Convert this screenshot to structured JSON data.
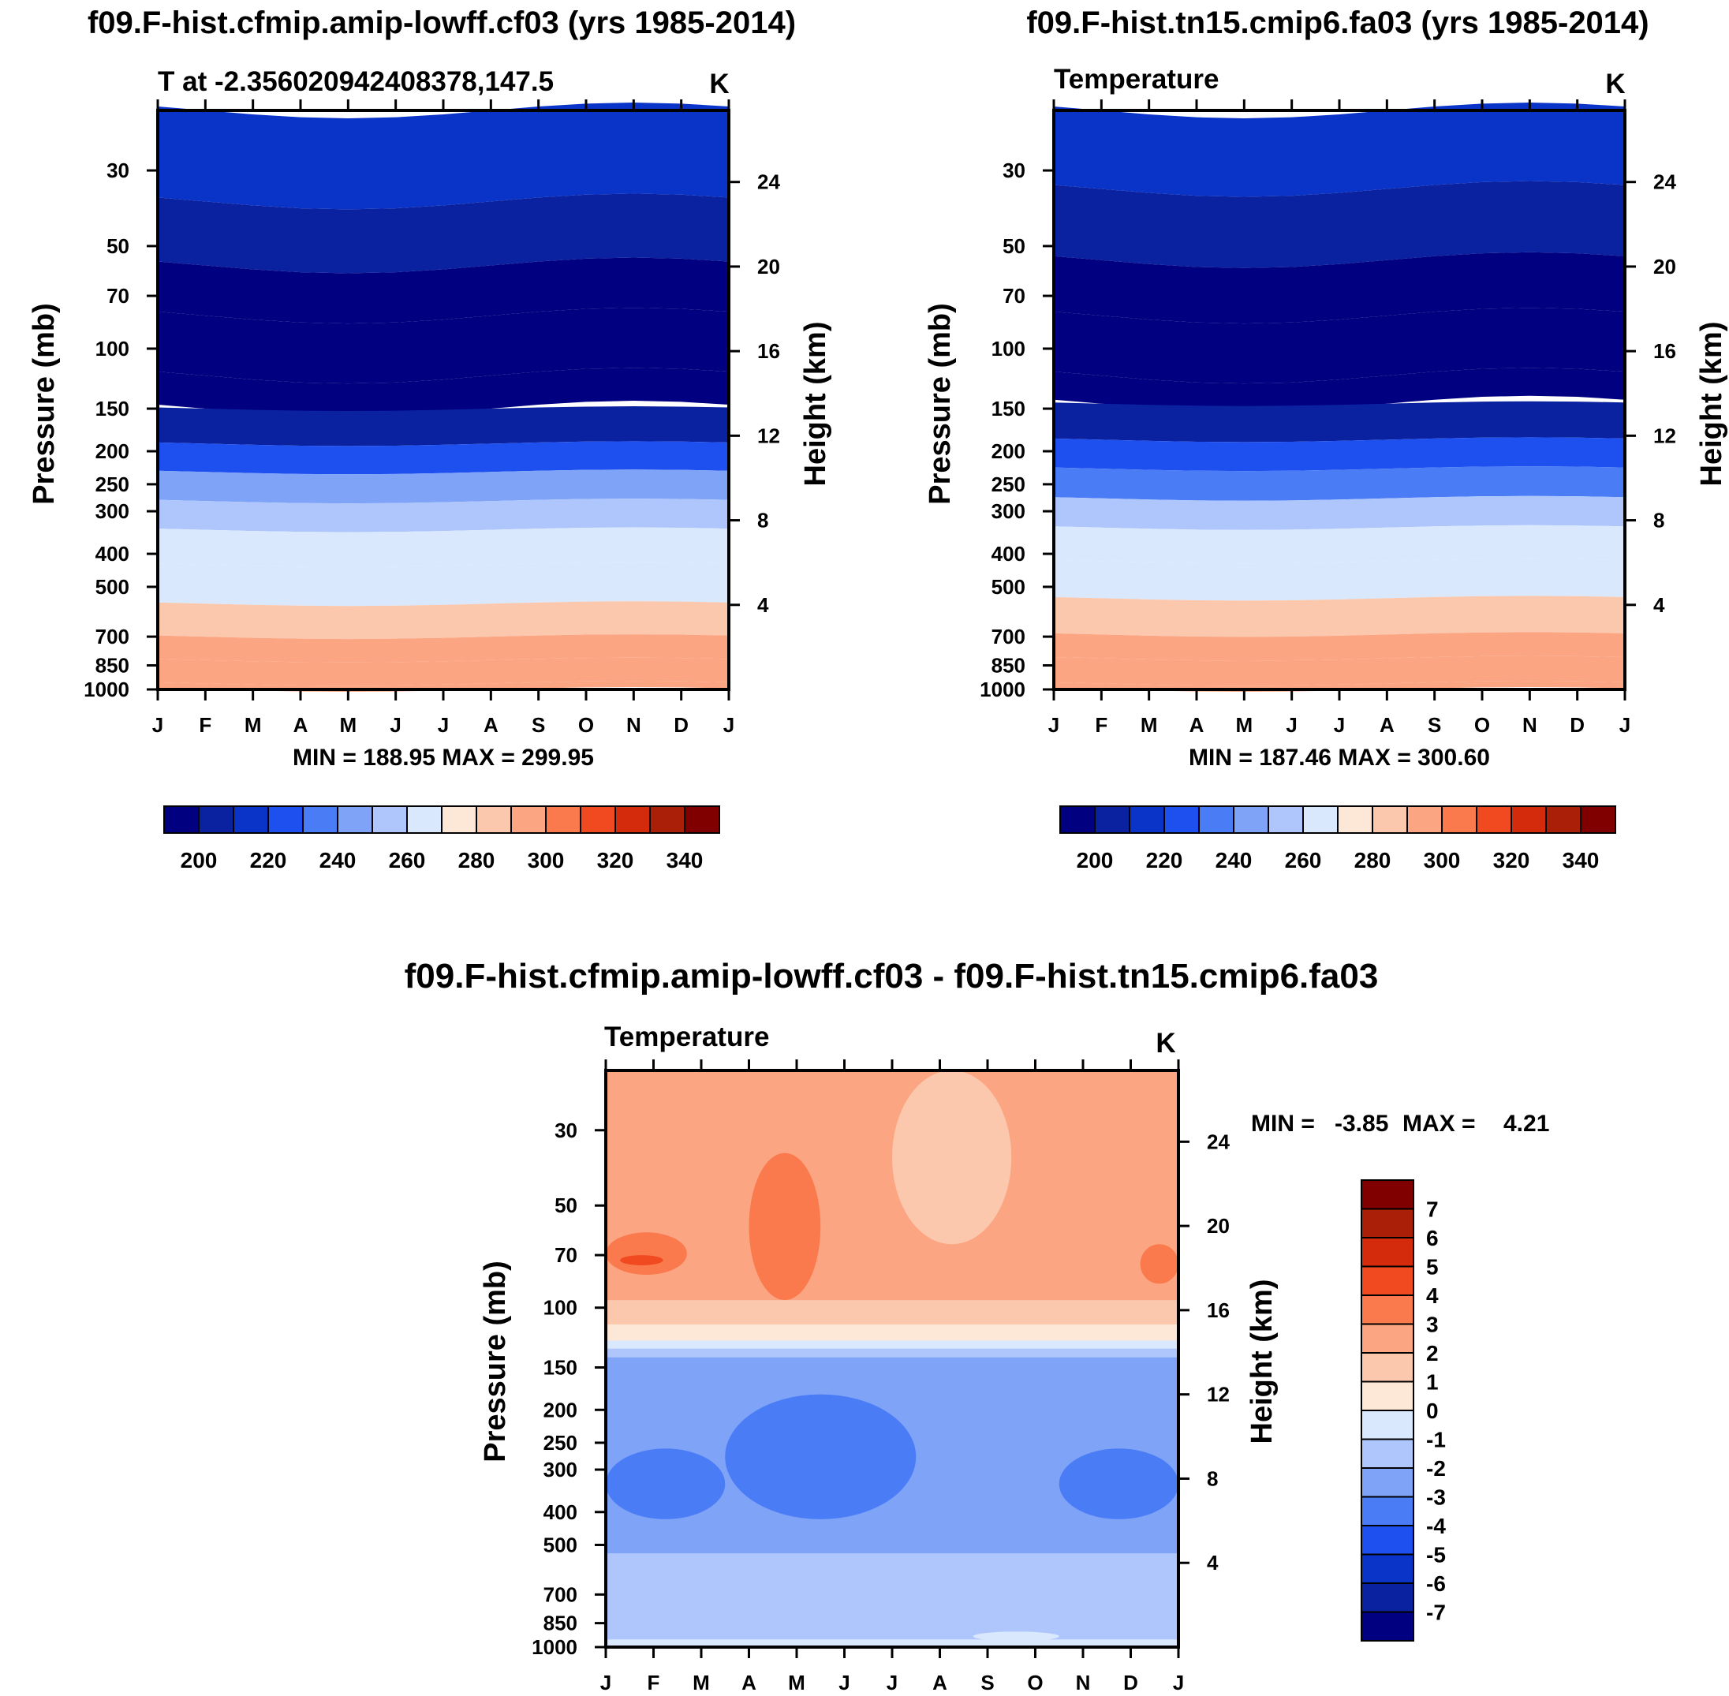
{
  "palettes": {
    "abs": [
      "#000080",
      "#0b22a0",
      "#0a34c8",
      "#1e50f0",
      "#4a7cf5",
      "#7ea3f7",
      "#aec6fb",
      "#d9e8fc",
      "#fde8d8",
      "#fcc8ad",
      "#fca582",
      "#fa7a4e",
      "#f24a20",
      "#d42b0c",
      "#a91f07",
      "#800000"
    ],
    "diff": [
      "#000080",
      "#0b22a0",
      "#0a34c8",
      "#1e50f0",
      "#4a7cf5",
      "#7ea3f7",
      "#aec6fb",
      "#d9e8fc",
      "#fde8d8",
      "#fcc8ad",
      "#fca582",
      "#fa7a4e",
      "#f24a20",
      "#d42b0c",
      "#a91f07",
      "#800000"
    ]
  },
  "chart_data": [
    {
      "type": "heatmap",
      "title": "f09.F-hist.cfmip.amip-lowff.cf03 (yrs 1985-2014)",
      "left_label": "T at -2.356020942408378,147.5",
      "units": "K",
      "ylabel": "Pressure (mb)",
      "ylabel_right": "Height (km)",
      "x_ticks": [
        "J",
        "F",
        "M",
        "A",
        "M",
        "J",
        "J",
        "A",
        "S",
        "O",
        "N",
        "D",
        "J"
      ],
      "y_ticks": [
        "30",
        "50",
        "70",
        "100",
        "150",
        "200",
        "250",
        "300",
        "400",
        "500",
        "700",
        "850",
        "1000"
      ],
      "y_ticks_right": [
        "24",
        "20",
        "16",
        "12",
        "8",
        "4"
      ],
      "ylim_mb": [
        1000,
        20
      ],
      "stats": "MIN = 188.95 MAX = 299.95",
      "colorbar_labels": [
        "200",
        "220",
        "240",
        "260",
        "280",
        "300",
        "320",
        "340"
      ],
      "levels": [
        190,
        195,
        200,
        205,
        210,
        220,
        230,
        240,
        250,
        260,
        270,
        280,
        290,
        300
      ],
      "profile": [
        {
          "p": 20,
          "v": 205
        },
        {
          "p": 37,
          "v": 200
        },
        {
          "p": 57,
          "v": 196
        },
        {
          "p": 80,
          "v": 191
        },
        {
          "p": 120,
          "v": 189
        },
        {
          "p": 150,
          "v": 195
        },
        {
          "p": 190,
          "v": 203
        },
        {
          "p": 230,
          "v": 215
        },
        {
          "p": 280,
          "v": 228
        },
        {
          "p": 340,
          "v": 241
        },
        {
          "p": 430,
          "v": 253
        },
        {
          "p": 560,
          "v": 266
        },
        {
          "p": 700,
          "v": 278
        },
        {
          "p": 820,
          "v": 287
        },
        {
          "p": 960,
          "v": 296
        },
        {
          "p": 1000,
          "v": 300
        }
      ]
    },
    {
      "type": "heatmap",
      "title": "f09.F-hist.tn15.cmip6.fa03 (yrs 1985-2014)",
      "left_label": "Temperature",
      "units": "K",
      "ylabel": "Pressure (mb)",
      "ylabel_right": "Height (km)",
      "x_ticks": [
        "J",
        "F",
        "M",
        "A",
        "M",
        "J",
        "J",
        "A",
        "S",
        "O",
        "N",
        "D",
        "J"
      ],
      "y_ticks": [
        "30",
        "50",
        "70",
        "100",
        "150",
        "200",
        "250",
        "300",
        "400",
        "500",
        "700",
        "850",
        "1000"
      ],
      "y_ticks_right": [
        "24",
        "20",
        "16",
        "12",
        "8",
        "4"
      ],
      "ylim_mb": [
        1000,
        20
      ],
      "stats": "MIN = 187.46 MAX = 300.60",
      "colorbar_labels": [
        "200",
        "220",
        "240",
        "260",
        "280",
        "300",
        "320",
        "340"
      ],
      "levels": [
        190,
        195,
        200,
        205,
        210,
        220,
        230,
        240,
        250,
        260,
        270,
        280,
        290,
        300
      ],
      "profile": [
        {
          "p": 20,
          "v": 204
        },
        {
          "p": 34,
          "v": 197
        },
        {
          "p": 55,
          "v": 193
        },
        {
          "p": 80,
          "v": 189
        },
        {
          "p": 120,
          "v": 188
        },
        {
          "p": 145,
          "v": 193
        },
        {
          "p": 185,
          "v": 201
        },
        {
          "p": 225,
          "v": 213
        },
        {
          "p": 275,
          "v": 226
        },
        {
          "p": 335,
          "v": 239
        },
        {
          "p": 420,
          "v": 251
        },
        {
          "p": 540,
          "v": 265
        },
        {
          "p": 690,
          "v": 277
        },
        {
          "p": 810,
          "v": 286
        },
        {
          "p": 960,
          "v": 296
        },
        {
          "p": 1000,
          "v": 301
        }
      ]
    },
    {
      "type": "heatmap",
      "title": "f09.F-hist.cfmip.amip-lowff.cf03 - f09.F-hist.tn15.cmip6.fa03",
      "left_label": "Temperature",
      "units": "K",
      "ylabel": "Pressure (mb)",
      "ylabel_right": "Height (km)",
      "x_ticks": [
        "J",
        "F",
        "M",
        "A",
        "M",
        "J",
        "J",
        "A",
        "S",
        "O",
        "N",
        "D",
        "J"
      ],
      "y_ticks": [
        "30",
        "50",
        "70",
        "100",
        "150",
        "200",
        "250",
        "300",
        "400",
        "500",
        "700",
        "850",
        "1000"
      ],
      "y_ticks_right": [
        "24",
        "20",
        "16",
        "12",
        "8",
        "4"
      ],
      "ylim_mb": [
        1000,
        20
      ],
      "stats_min_label": "MIN =",
      "stats_min": "-3.85",
      "stats_max_label": "MAX =",
      "stats_max": "4.21",
      "colorbar_labels": [
        "7",
        "6",
        "5",
        "4",
        "3",
        "2",
        "1",
        "0",
        "-1",
        "-2",
        "-3",
        "-4",
        "-5",
        "-6",
        "-7"
      ],
      "bands": [
        {
          "p_top": 20,
          "p_bot": 120,
          "v": 2.5
        },
        {
          "p_top": 35,
          "p_bot": 95,
          "month_from": 3,
          "month_to": 4.5,
          "v": 3.5
        },
        {
          "p_top": 20,
          "p_bot": 65,
          "month_from": 6,
          "month_to": 8.5,
          "v": 1.5
        },
        {
          "p_top": 60,
          "p_bot": 80,
          "month_from": 0,
          "month_to": 1.7,
          "v": 3.5
        },
        {
          "p_top": 70,
          "p_bot": 75,
          "month_from": 0.3,
          "month_to": 1.2,
          "v": 4.5
        },
        {
          "p_top": 65,
          "p_bot": 85,
          "month_from": 11.2,
          "month_to": 12,
          "v": 3.5
        },
        {
          "p_top": 95,
          "p_bot": 115,
          "v": 1.5
        },
        {
          "p_top": 112,
          "p_bot": 125,
          "v": 0.5
        },
        {
          "p_top": 125,
          "p_bot": 132,
          "v": -0.5
        },
        {
          "p_top": 132,
          "p_bot": 140,
          "v": -1.5
        },
        {
          "p_top": 140,
          "p_bot": 530,
          "v": -2.5
        },
        {
          "p_top": 180,
          "p_bot": 420,
          "month_from": 2.5,
          "month_to": 6.5,
          "v": -3.5
        },
        {
          "p_top": 260,
          "p_bot": 420,
          "month_from": 0,
          "month_to": 2.5,
          "v": -3.5
        },
        {
          "p_top": 260,
          "p_bot": 420,
          "month_from": 9.5,
          "month_to": 12,
          "v": -3.5
        },
        {
          "p_top": 530,
          "p_bot": 950,
          "v": -1.5
        },
        {
          "p_top": 900,
          "p_bot": 960,
          "month_from": 7.7,
          "month_to": 9.5,
          "v": -0.5
        },
        {
          "p_top": 950,
          "p_bot": 1000,
          "v": -0.5
        }
      ]
    }
  ]
}
